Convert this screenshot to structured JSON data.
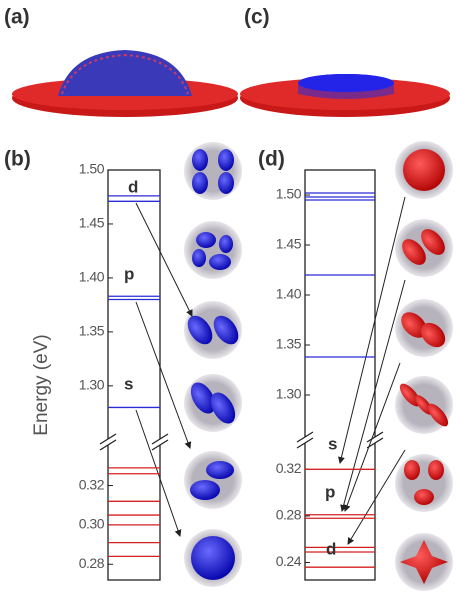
{
  "top_labels": [
    "(a)",
    "(c)"
  ],
  "y_axis_label": "Energy (eV)",
  "panels": [
    {
      "label": "(b)",
      "upper": {
        "ylim": [
          1.26,
          1.5
        ],
        "yticks": [
          {
            "value": 1.5,
            "label": "1.50"
          },
          1.45,
          {
            "value": 1.4,
            "label": "1.40"
          },
          1.35,
          {
            "value": 1.3,
            "label": "1.30"
          }
        ],
        "levels": [
          1.476,
          1.471,
          1.383,
          1.38,
          1.28
        ],
        "color": "#2b2bd6"
      },
      "lower": {
        "ylim": [
          0.272,
          0.334
        ],
        "yticks": [
          0.32,
          {
            "value": 0.3,
            "label": "0.30"
          },
          0.28
        ],
        "levels": [
          0.329,
          0.326,
          0.312,
          0.305,
          0.3,
          0.291,
          0.284
        ],
        "color": "#d42020"
      },
      "annotations": [
        "d",
        "p",
        "s"
      ]
    },
    {
      "label": "(d)",
      "upper": {
        "ylim": [
          1.263,
          1.525
        ],
        "yticks": [
          {
            "value": 1.5,
            "label": "1.50"
          },
          1.45,
          {
            "value": 1.4,
            "label": "1.40"
          },
          1.35,
          {
            "value": 1.3,
            "label": "1.30"
          }
        ],
        "levels": [
          1.502,
          1.498,
          1.495,
          1.42,
          1.338
        ],
        "color": "#2b2bd6"
      },
      "lower": {
        "ylim": [
          0.225,
          0.34
        ],
        "yticks": [
          0.32,
          0.28,
          0.24
        ],
        "levels": [
          0.32,
          0.281,
          0.278,
          0.253,
          0.249,
          0.236
        ],
        "color": "#d42020"
      },
      "annotations": [
        "s",
        "p",
        "d"
      ]
    }
  ]
}
